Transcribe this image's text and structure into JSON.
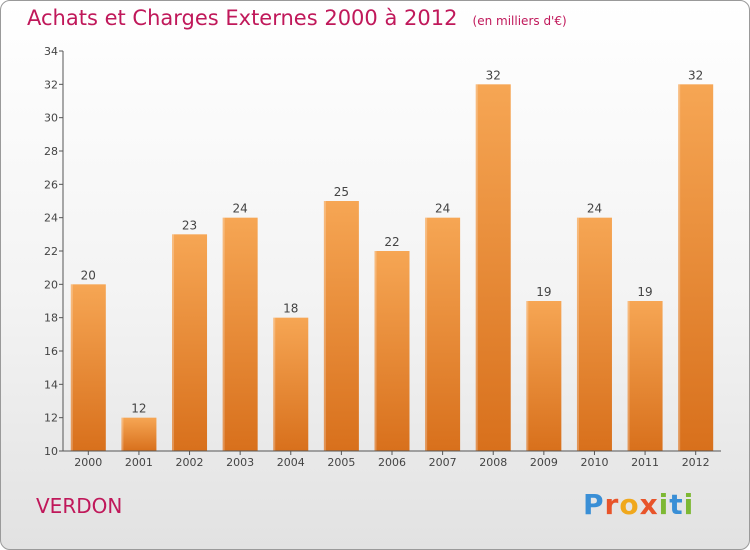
{
  "header": {
    "title": "Achats et Charges Externes 2000 à 2012",
    "unit_note": "(en milliers d'€)"
  },
  "footer": {
    "commune": "VERDON",
    "logo_text": "Proxiti",
    "logo_letters": [
      "P",
      "r",
      "o",
      "x",
      "i",
      "t",
      "i"
    ],
    "logo_colors": [
      "#3a8fd6",
      "#e8542a",
      "#f0a81c",
      "#e8542a",
      "#7db833",
      "#3a8fd6",
      "#7db833"
    ]
  },
  "colors": {
    "title": "#c0185a",
    "bar_top": "#f6a654",
    "bar_bottom": "#d8701c",
    "axis": "#555555",
    "grid": "#e8e8e8"
  },
  "chart_data": {
    "type": "bar",
    "title": "Achats et Charges Externes 2000 à 2012",
    "subtitle": "(en milliers d'€)",
    "xlabel": "",
    "ylabel": "",
    "categories": [
      "2000",
      "2001",
      "2002",
      "2003",
      "2004",
      "2005",
      "2006",
      "2007",
      "2008",
      "2009",
      "2010",
      "2011",
      "2012"
    ],
    "values": [
      20,
      12,
      23,
      24,
      18,
      25,
      22,
      24,
      32,
      19,
      24,
      19,
      32
    ],
    "ylim": [
      10,
      34
    ],
    "yticks": [
      10,
      12,
      14,
      16,
      18,
      20,
      22,
      24,
      26,
      28,
      30,
      32,
      34
    ],
    "data_labels": true,
    "grid": false,
    "legend": "none"
  }
}
